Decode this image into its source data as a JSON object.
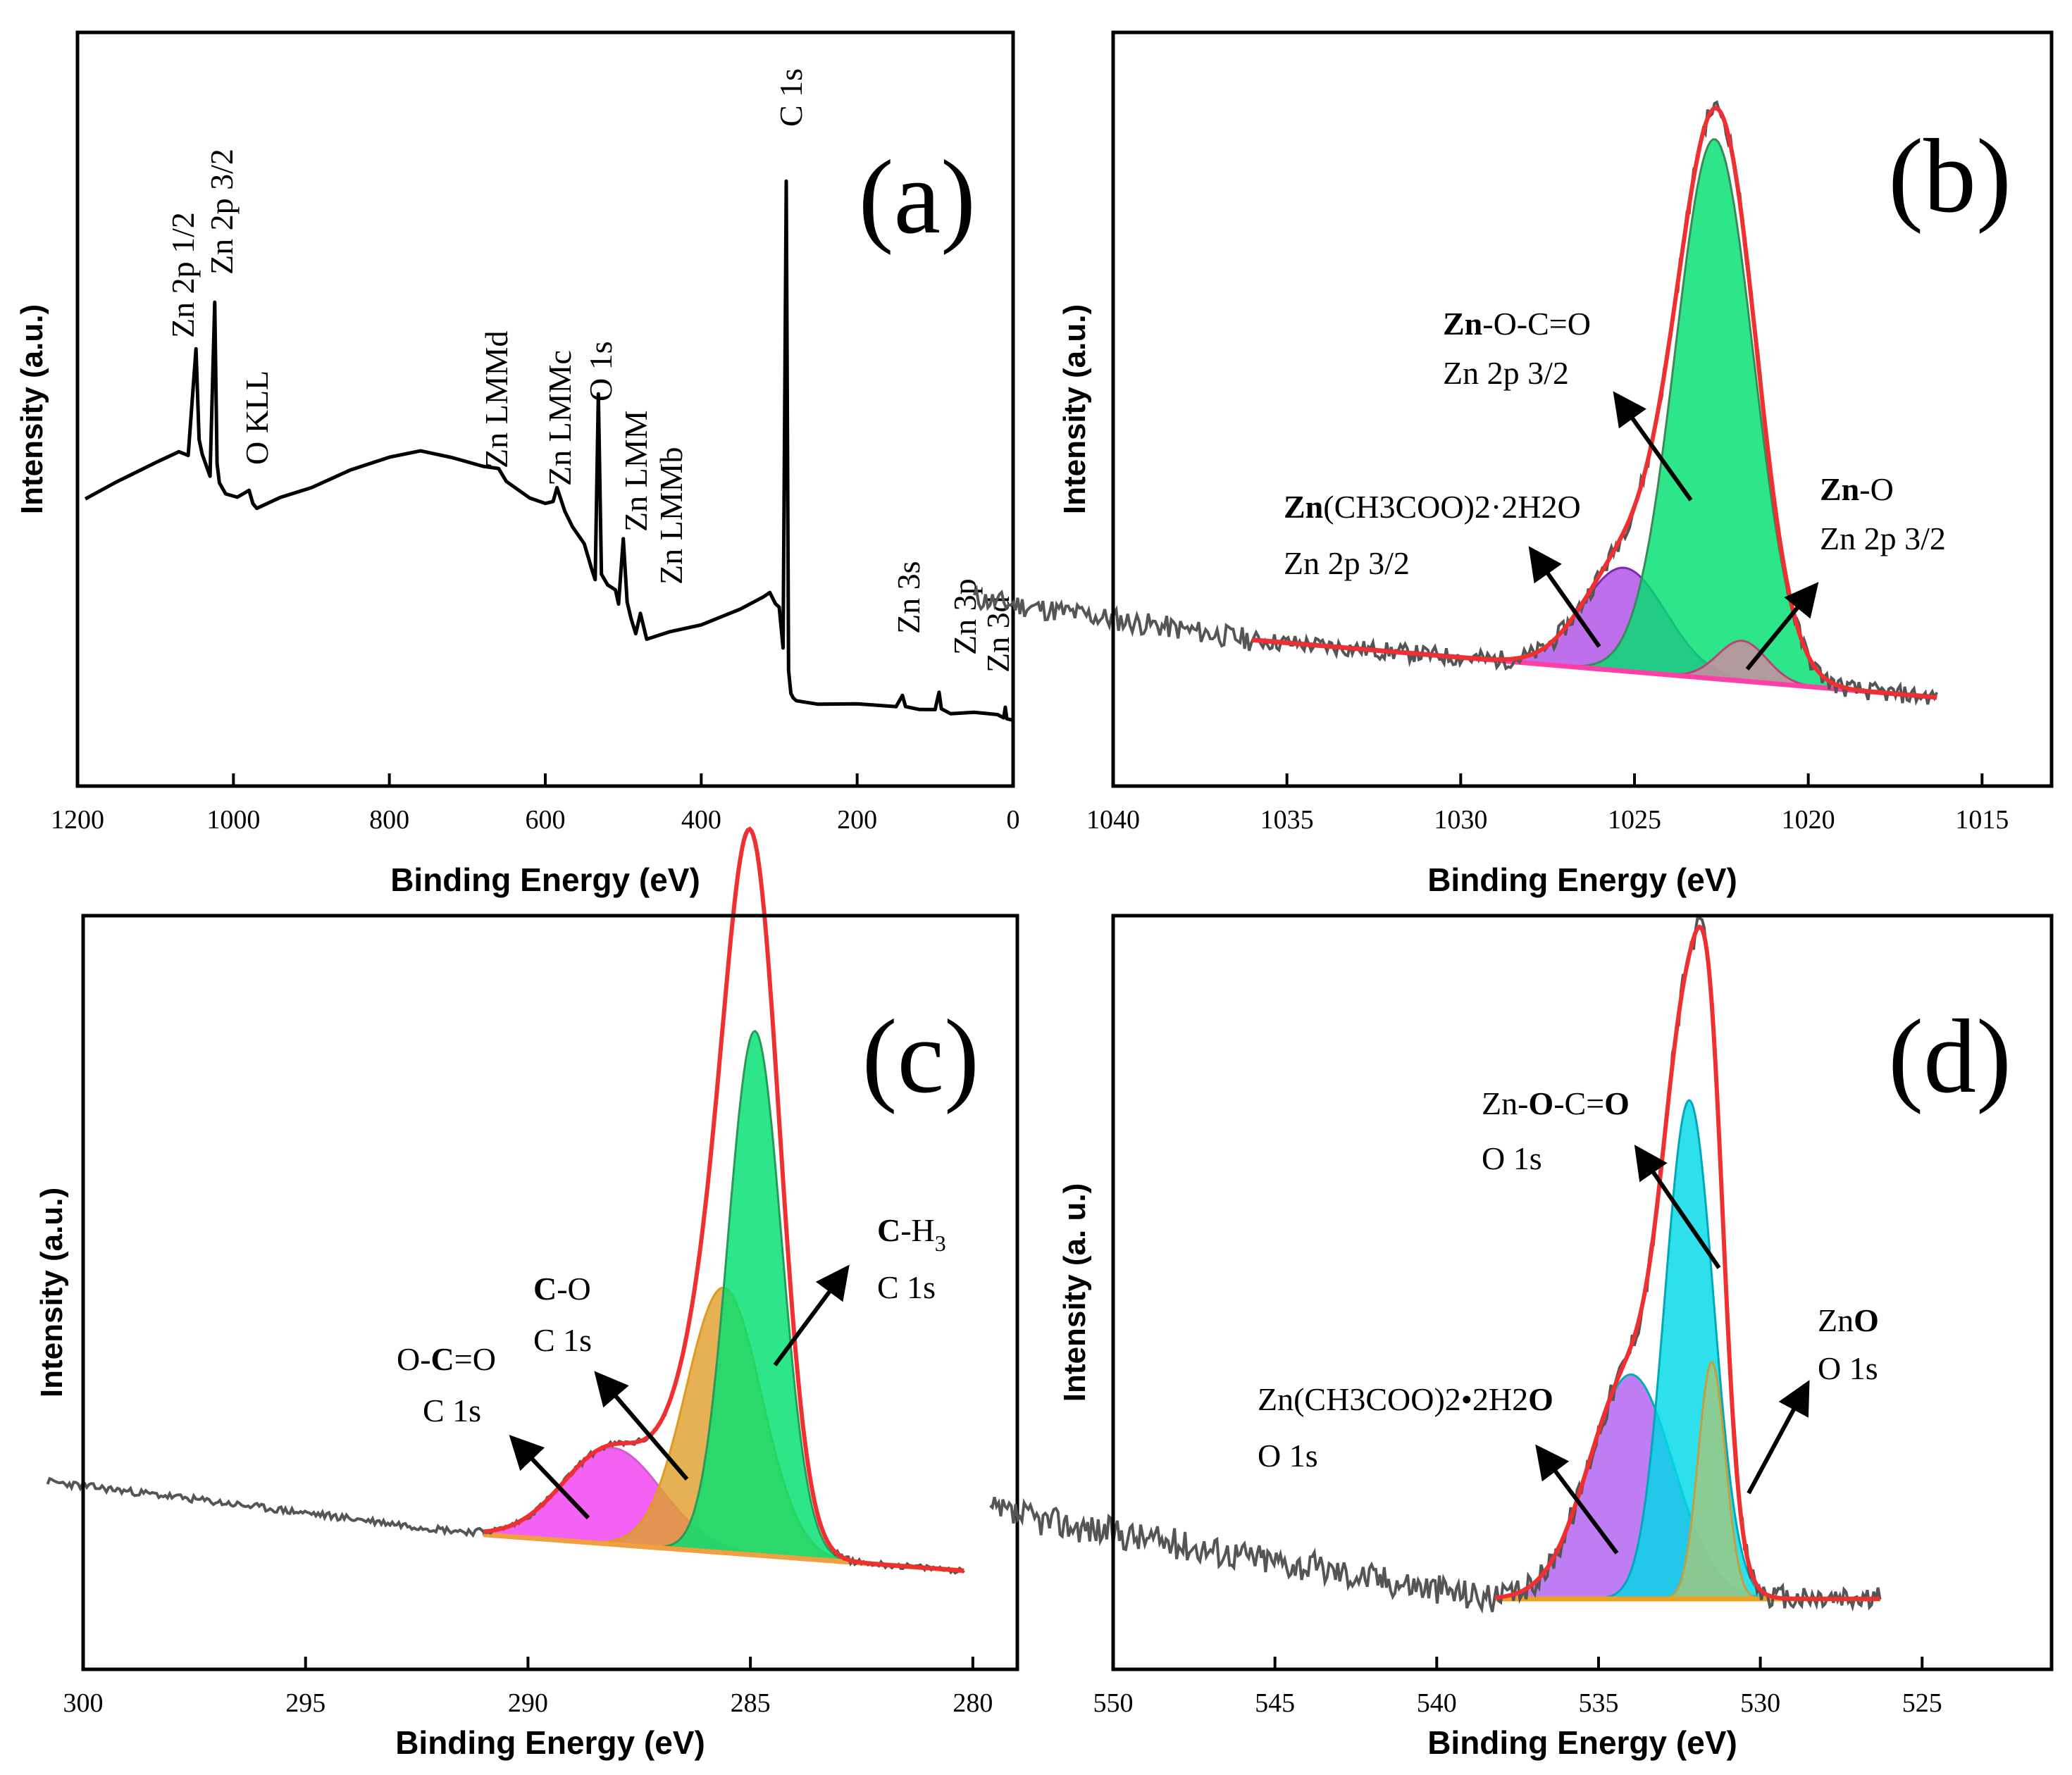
{
  "chart_data": [
    {
      "id": "a",
      "type": "line",
      "panel_label": "(a)",
      "xlabel": "Binding Energy (eV)",
      "ylabel": "Intensity (a.u.)",
      "xlim": [
        1200,
        0
      ],
      "ylim": [
        0,
        100
      ],
      "xticks": [
        1200,
        1000,
        800,
        600,
        400,
        200,
        0
      ],
      "xtick_labels": [
        "1200",
        "1000",
        "800",
        "600",
        "400",
        "200",
        "0"
      ],
      "series": [
        {
          "name": "survey",
          "color": "#000000",
          "x": [
            1190,
            1150,
            1100,
            1070,
            1058,
            1048,
            1044,
            1040,
            1030,
            1024,
            1021,
            1018,
            1010,
            995,
            980,
            975,
            970,
            940,
            900,
            850,
            800,
            760,
            720,
            680,
            660,
            650,
            620,
            600,
            590,
            585,
            575,
            565,
            550,
            540,
            536,
            532,
            528,
            520,
            510,
            506,
            500,
            495,
            490,
            484,
            478,
            470,
            440,
            400,
            350,
            320,
            312,
            305,
            300,
            295,
            291,
            288,
            285,
            282,
            278,
            270,
            250,
            200,
            150,
            142,
            138,
            120,
            100,
            95,
            92,
            88,
            80,
            50,
            20,
            12,
            10,
            8,
            0
          ],
          "y": [
            38,
            41,
            44,
            46,
            45.5,
            64,
            48,
            46,
            42,
            72,
            44,
            41,
            39,
            38,
            39.5,
            37,
            36.5,
            38,
            40,
            43,
            45,
            46,
            45.5,
            44,
            43,
            41,
            38.5,
            37,
            37.5,
            40,
            36,
            33,
            30,
            26,
            24,
            56,
            25,
            23,
            22,
            20,
            31,
            20,
            17,
            15,
            18,
            14,
            15,
            16,
            19,
            21,
            22,
            20,
            19,
            12,
            93,
            8,
            4,
            3.5,
            3.2,
            3.0,
            2.8,
            2.4,
            2.0,
            4,
            2.0,
            1.8,
            1.5,
            4.5,
            1.5,
            1.2,
            1.0,
            0.8,
            0.5,
            0.3,
            2.2,
            0.3,
            0
          ]
        }
      ],
      "annotations": [
        {
          "text": "Zn 2p 1/2",
          "x": 1048
        },
        {
          "text": "Zn 2p 3/2",
          "x": 1021
        },
        {
          "text": "O KLL",
          "x": 975
        },
        {
          "text": "Zn LMMd",
          "x": 660
        },
        {
          "text": "Zn LMMc",
          "x": 585
        },
        {
          "text": "O 1s",
          "x": 532
        },
        {
          "text": "Zn LMM",
          "x": 500
        },
        {
          "text": "Zn LMMb",
          "x": 470
        },
        {
          "text": "C 1s",
          "x": 288
        },
        {
          "text": "Zn 3s",
          "x": 140
        },
        {
          "text": "Zn 3p",
          "x": 92
        },
        {
          "text": "Zn 3d",
          "x": 10
        }
      ]
    },
    {
      "id": "b",
      "type": "line",
      "panel_label": "(b)",
      "xlabel": "Binding Energy (eV)",
      "ylabel": "Intensity (a.u.)",
      "xlim": [
        1040,
        1013
      ],
      "ylim": [
        0,
        100
      ],
      "xticks": [
        1040,
        1035,
        1030,
        1025,
        1020,
        1015
      ],
      "xtick_labels": [
        "1040",
        "1035",
        "1030",
        "1025",
        "1020",
        "1015"
      ],
      "baseline": {
        "x": [
          1036,
          1016.3
        ],
        "y": [
          10,
          0
        ]
      },
      "peaks": [
        {
          "name": "Zn(CH3COO)2·2H2O Zn 2p 3/2",
          "center": 1025.3,
          "amplitude": 18,
          "sigma": 1.2,
          "fill": "#b050e8",
          "stroke": "#7a2bb0"
        },
        {
          "name": "Zn-O-C=O Zn 2p 3/2",
          "center": 1022.7,
          "amplitude": 94,
          "sigma": 1.12,
          "fill": "#00e070",
          "stroke": "#3a8a5a"
        },
        {
          "name": "Zn-O Zn 2p 3/2",
          "center": 1021.9,
          "amplitude": 7,
          "sigma": 0.7,
          "fill": "#d08aa0",
          "stroke": "#c0407a"
        }
      ],
      "raw_color": "#555555",
      "envelope_color": "#f03030",
      "baseline_color": "#ff3fa8",
      "annotations": [
        {
          "line1_bold": "Zn",
          "line1_rest": "-O-C=O",
          "line2": "Zn 2p 3/2"
        },
        {
          "line1_bold": "Zn",
          "line1_rest": "(CH3COO)2·2H2O",
          "line2": "Zn 2p 3/2"
        },
        {
          "line1_bold": "Zn",
          "line1_rest": "-O",
          "line2": "Zn 2p 3/2"
        }
      ]
    },
    {
      "id": "c",
      "type": "line",
      "panel_label": "(c)",
      "xlabel": "Binding Energy (eV)",
      "ylabel": "Intensity (a.u.)",
      "xlim": [
        300,
        279
      ],
      "ylim": [
        0,
        100
      ],
      "xticks": [
        300,
        295,
        290,
        285,
        280
      ],
      "xtick_labels": [
        "300",
        "295",
        "290",
        "285",
        "280"
      ],
      "baseline": {
        "x": [
          291,
          280.2
        ],
        "y": [
          6,
          0
        ]
      },
      "peaks": [
        {
          "name": "O-C=O C 1s",
          "center": 288.1,
          "amplitude": 16,
          "sigma": 1.1,
          "fill": "#f040f0",
          "stroke": "#d060d0"
        },
        {
          "name": "C-O C 1s",
          "center": 285.6,
          "amplitude": 44,
          "sigma": 0.85,
          "fill": "#e0a030",
          "stroke": "#e09a20"
        },
        {
          "name": "C-H3 C 1s",
          "center": 284.9,
          "amplitude": 87,
          "sigma": 0.6,
          "fill": "#00e070",
          "stroke": "#2a9a5a"
        }
      ],
      "raw_color": "#555555",
      "envelope_color": "#f03030",
      "baseline_color": "#f0a040",
      "annotations": [
        {
          "line1_bold": "C",
          "line1_rest": "-H",
          "line1_sub": "3",
          "line2": "C 1s"
        },
        {
          "line1_bold": "C",
          "line1_rest": "-O",
          "line2": "C 1s"
        },
        {
          "line1_pre": "O-",
          "line1_bold": "C",
          "line1_rest": "=O",
          "line2": "C 1s"
        }
      ]
    },
    {
      "id": "d",
      "type": "line",
      "panel_label": "(d)",
      "xlabel": "Binding Energy (eV)",
      "ylabel": "Intensity (a. u.)",
      "xlim": [
        550,
        521
      ],
      "ylim": [
        0,
        100
      ],
      "xticks": [
        550,
        545,
        540,
        535,
        530,
        525
      ],
      "xtick_labels": [
        "550",
        "545",
        "540",
        "535",
        "530",
        "525"
      ],
      "baseline": {
        "x": [
          538.2,
          526.3
        ],
        "y": [
          0,
          0
        ]
      },
      "peaks": [
        {
          "name": "Zn(CH3COO)2·2H2O O 1s",
          "center": 534.0,
          "amplitude": 36,
          "sigma": 1.3,
          "fill": "#b060f0",
          "stroke": "#00b0b0"
        },
        {
          "name": "Zn-O-C=O O 1s",
          "center": 532.2,
          "amplitude": 80,
          "sigma": 0.75,
          "fill": "#00d8e8",
          "stroke": "#00a8b8"
        },
        {
          "name": "ZnO O 1s",
          "center": 531.5,
          "amplitude": 38,
          "sigma": 0.42,
          "fill": "#a0c880",
          "stroke": "#c0a040"
        }
      ],
      "raw_color": "#555555",
      "envelope_color": "#f03030",
      "baseline_color": "#f0a020",
      "annotations": [
        {
          "line1_pre": "Zn-",
          "line1_bold": "O",
          "line1_rest": "-C=",
          "line1_bold2": "O",
          "line2": "O 1s"
        },
        {
          "line1_pre": "Zn",
          "line1_bold": "O",
          "line2": "O 1s"
        },
        {
          "line1_pre": "Zn(CH3COO)2•2H2",
          "line1_bold": "O",
          "line2": "O 1s"
        }
      ]
    }
  ]
}
